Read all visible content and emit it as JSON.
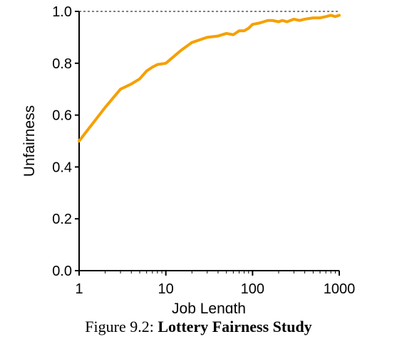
{
  "chart_data": {
    "type": "line",
    "xscale": "log",
    "xlim": [
      1,
      1000
    ],
    "ylim": [
      0,
      1.0
    ],
    "xlabel": "Job Length",
    "ylabel": "Unfairness",
    "xticks": [
      "1",
      "10",
      "100",
      "1000"
    ],
    "yticks": [
      "0.0",
      "0.2",
      "0.4",
      "0.6",
      "0.8",
      "1.0"
    ],
    "reference_line": 1.0,
    "line_color": "#f5a000",
    "series": [
      {
        "x": [
          1,
          2,
          3,
          4,
          5,
          6,
          7,
          8,
          10,
          15,
          20,
          30,
          40,
          50,
          60,
          70,
          80,
          90,
          100,
          120,
          150,
          170,
          200,
          220,
          250,
          300,
          350,
          400,
          500,
          600,
          700,
          800,
          900,
          1000
        ],
        "y": [
          0.5,
          0.63,
          0.7,
          0.72,
          0.74,
          0.77,
          0.785,
          0.795,
          0.8,
          0.85,
          0.88,
          0.9,
          0.905,
          0.915,
          0.91,
          0.925,
          0.925,
          0.935,
          0.95,
          0.955,
          0.965,
          0.965,
          0.96,
          0.965,
          0.96,
          0.97,
          0.965,
          0.97,
          0.975,
          0.975,
          0.98,
          0.985,
          0.98,
          0.985
        ]
      }
    ]
  },
  "caption": {
    "prefix": "Figure 9.2: ",
    "title": "Lottery Fairness Study"
  }
}
